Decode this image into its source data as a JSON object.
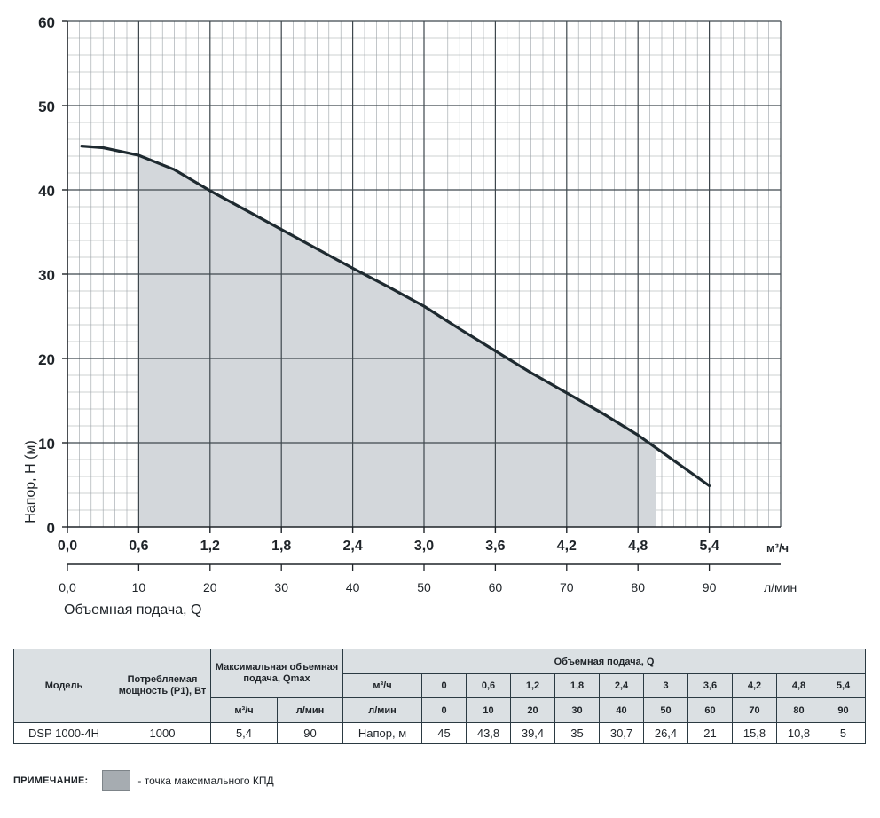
{
  "chart_data": {
    "type": "area",
    "ylabel": "Напор, Н (м)",
    "xlabel": "Объемная подача, Q",
    "x_unit_m3h": "м³/ч",
    "x_unit_lmin": "л/мин",
    "ylim": [
      0,
      60
    ],
    "xlim_m3h": [
      0,
      6.0
    ],
    "y_ticks": [
      "0",
      "10",
      "20",
      "30",
      "40",
      "50",
      "60"
    ],
    "x_ticks_m3h": [
      "0,0",
      "0,6",
      "1,2",
      "1,8",
      "2,4",
      "3,0",
      "3,6",
      "4,2",
      "4,8",
      "5,4"
    ],
    "x_ticks_lmin": [
      "0,0",
      "10",
      "20",
      "30",
      "40",
      "50",
      "60",
      "70",
      "80",
      "90"
    ],
    "grid": true,
    "curve_line_color": "#1e2a30",
    "area_color": "#d3d7db",
    "working_range_m3h": [
      0.6,
      4.95
    ],
    "curve": [
      {
        "x": 0.12,
        "y": 45.2
      },
      {
        "x": 0.3,
        "y": 45.0
      },
      {
        "x": 0.6,
        "y": 44.1
      },
      {
        "x": 0.9,
        "y": 42.4
      },
      {
        "x": 1.2,
        "y": 39.9
      },
      {
        "x": 1.5,
        "y": 37.6
      },
      {
        "x": 1.8,
        "y": 35.3
      },
      {
        "x": 2.1,
        "y": 33.0
      },
      {
        "x": 2.4,
        "y": 30.7
      },
      {
        "x": 2.7,
        "y": 28.5
      },
      {
        "x": 3.0,
        "y": 26.2
      },
      {
        "x": 3.3,
        "y": 23.5
      },
      {
        "x": 3.6,
        "y": 20.9
      },
      {
        "x": 3.9,
        "y": 18.3
      },
      {
        "x": 4.2,
        "y": 15.9
      },
      {
        "x": 4.5,
        "y": 13.5
      },
      {
        "x": 4.8,
        "y": 10.9
      },
      {
        "x": 5.1,
        "y": 7.9
      },
      {
        "x": 5.4,
        "y": 4.9
      }
    ]
  },
  "table": {
    "h_model": "Модель",
    "h_power": "Потребляемая мощность (P1), Вт",
    "h_qmax": "Максимальная объемная подача, Qmax",
    "h_qmax_m3h": "м³/ч",
    "h_qmax_lmin": "л/мин",
    "h_flow": "Объемная подача, Q",
    "h_row_m3h": "м³/ч",
    "h_row_lmin": "л/мин",
    "flow_m3h": [
      "0",
      "0,6",
      "1,2",
      "1,8",
      "2,4",
      "3",
      "3,6",
      "4,2",
      "4,8",
      "5,4"
    ],
    "flow_lmin": [
      "0",
      "10",
      "20",
      "30",
      "40",
      "50",
      "60",
      "70",
      "80",
      "90"
    ],
    "model": "DSP 1000-4H",
    "power": "1000",
    "qmax_m3h": "5,4",
    "qmax_lmin": "90",
    "head_label": "Напор, м",
    "heads": [
      "45",
      "43,8",
      "39,4",
      "35",
      "30,7",
      "26,4",
      "21",
      "15,8",
      "10,8",
      "5"
    ],
    "max_eff_index": 5
  },
  "note": {
    "label": "ПРИМЕЧАНИЕ:",
    "text": "- точка максимального КПД",
    "swatch_color": "#a6acb1"
  }
}
